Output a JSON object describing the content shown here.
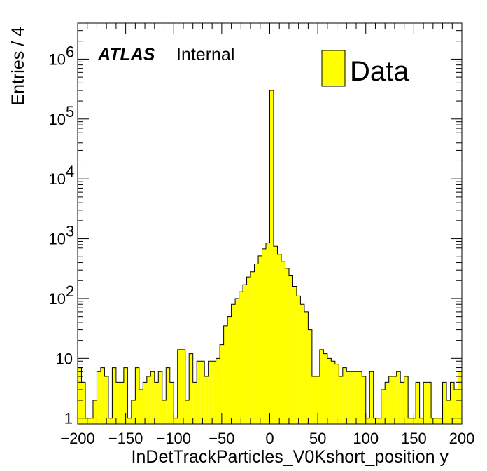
{
  "chart_data": {
    "type": "histogram",
    "xlabel": "InDetTrackParticles_V0Kshort_position y",
    "ylabel": "Entries / 4",
    "xlim": [
      -200,
      200
    ],
    "ylim": [
      0.8,
      4000000
    ],
    "log_y": true,
    "bin_width": 4,
    "x_ticks": [
      "−200",
      "−150",
      "−100",
      "−50",
      "0",
      "50",
      "100",
      "150",
      "200"
    ],
    "x_tick_values": [
      -200,
      -150,
      -100,
      -50,
      0,
      50,
      100,
      150,
      200
    ],
    "y_ticks": [
      {
        "value": 1,
        "base": "1",
        "exp": ""
      },
      {
        "value": 10,
        "base": "10",
        "exp": ""
      },
      {
        "value": 100,
        "base": "10",
        "exp": "2"
      },
      {
        "value": 1000,
        "base": "10",
        "exp": "3"
      },
      {
        "value": 10000,
        "base": "10",
        "exp": "4"
      },
      {
        "value": 100000,
        "base": "10",
        "exp": "5"
      },
      {
        "value": 1000000,
        "base": "10",
        "exp": "6"
      }
    ],
    "fill_color": "#ffff00",
    "line_color": "#000000",
    "series": [
      {
        "name": "Data",
        "bin_low_edges": [
          -200,
          -196,
          -192,
          -188,
          -184,
          -180,
          -176,
          -172,
          -168,
          -164,
          -160,
          -156,
          -152,
          -148,
          -144,
          -140,
          -136,
          -132,
          -128,
          -124,
          -120,
          -116,
          -112,
          -108,
          -104,
          -100,
          -96,
          -92,
          -88,
          -84,
          -80,
          -76,
          -72,
          -68,
          -64,
          -60,
          -56,
          -52,
          -48,
          -44,
          -40,
          -36,
          -32,
          -28,
          -24,
          -20,
          -16,
          -12,
          -8,
          -4,
          0,
          4,
          8,
          12,
          16,
          20,
          24,
          28,
          32,
          36,
          40,
          44,
          48,
          52,
          56,
          60,
          64,
          68,
          72,
          76,
          80,
          84,
          88,
          92,
          96,
          100,
          104,
          108,
          112,
          116,
          120,
          124,
          128,
          132,
          136,
          140,
          144,
          148,
          152,
          156,
          160,
          164,
          168,
          172,
          176,
          180,
          184,
          188,
          192,
          196
        ],
        "values": [
          7,
          4,
          1,
          1,
          2,
          6,
          7,
          5,
          1,
          7,
          4,
          4,
          7,
          1,
          2,
          7,
          3,
          4,
          5,
          6,
          4,
          6,
          2,
          7,
          4,
          1,
          14,
          14,
          2,
          12,
          4,
          9,
          9,
          5,
          9,
          9,
          10,
          17,
          35,
          50,
          80,
          100,
          130,
          170,
          230,
          280,
          380,
          520,
          680,
          850,
          300000,
          750,
          550,
          420,
          320,
          240,
          160,
          110,
          80,
          60,
          30,
          5,
          5,
          14,
          12,
          10,
          9,
          8,
          5,
          7,
          6,
          6,
          6,
          6,
          5,
          1,
          6,
          1,
          1,
          3,
          4,
          5,
          5,
          6,
          4,
          5,
          1,
          1,
          4,
          1,
          4,
          4,
          1,
          1,
          1,
          4,
          2,
          4,
          3,
          6
        ]
      }
    ],
    "legend": {
      "entries": [
        "Data"
      ],
      "position": "top-right"
    },
    "annotations": {
      "experiment": "ATLAS",
      "status": "Internal"
    }
  }
}
